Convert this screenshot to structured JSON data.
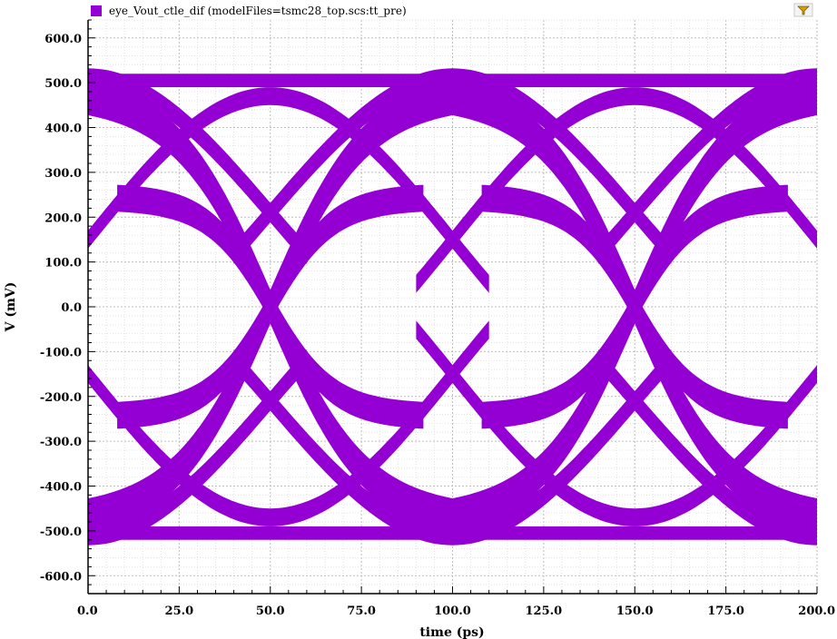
{
  "chart_data": {
    "type": "line",
    "title": "",
    "xlabel": "time (ps)",
    "ylabel": "V (mV)",
    "xlim": [
      0,
      200
    ],
    "ylim": [
      -640,
      640
    ],
    "x_ticks": [
      "0.0",
      "25.0",
      "50.0",
      "75.0",
      "100.0",
      "125.0",
      "150.0",
      "175.0",
      "200.0"
    ],
    "x_tick_values": [
      0,
      25,
      50,
      75,
      100,
      125,
      150,
      175,
      200
    ],
    "y_ticks": [
      "600.0",
      "500.0",
      "400.0",
      "300.0",
      "200.0",
      "100.0",
      "0.0",
      "-100.0",
      "-200.0",
      "-300.0",
      "-400.0",
      "-500.0",
      "-600.0"
    ],
    "y_tick_values": [
      600,
      500,
      400,
      300,
      200,
      100,
      0,
      -100,
      -200,
      -300,
      -400,
      -500,
      -600
    ],
    "grid": true,
    "legend_position": "top-left",
    "series": [
      {
        "name": "eye_Vout_ctle_dif (modelFiles=tsmc28_top.scs:tt_pre)",
        "color": "#9400d3",
        "unit_interval_ps": 100,
        "crossing_times_ps": [
          50,
          150
        ],
        "crossing_voltage_mv": 0,
        "levels_mv": [
          {
            "min": 490,
            "max": 520
          },
          {
            "min": 180,
            "max": 290
          },
          {
            "min": -300,
            "max": -190
          },
          {
            "min": -520,
            "max": -490
          }
        ],
        "eye_opening_top_mv": 190,
        "eye_opening_bottom_mv": -190
      }
    ]
  },
  "legend": {
    "label": "eye_Vout_ctle_dif (modelFiles=tsmc28_top.scs:tt_pre)",
    "swatch_color": "#9400d3"
  },
  "toolbar": {
    "filter_icon": "filter-icon"
  }
}
